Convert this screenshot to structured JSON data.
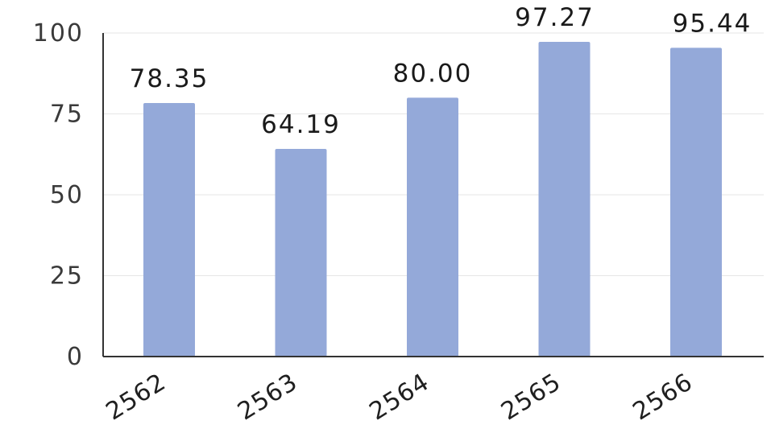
{
  "chart_data": {
    "type": "bar",
    "categories": [
      "2562",
      "2563",
      "2564",
      "2565",
      "2566"
    ],
    "values": [
      78.35,
      64.19,
      80.0,
      97.27,
      95.44
    ],
    "data_labels": [
      "78.35",
      "64.19",
      "80.00",
      "97.27",
      "95.44"
    ],
    "title": "",
    "xlabel": "",
    "ylabel": "",
    "ylim": [
      0,
      100
    ],
    "yticks": [
      0,
      25,
      50,
      75,
      100
    ],
    "ytick_labels": [
      "0",
      "25",
      "50",
      "75",
      "100"
    ],
    "grid": true,
    "legend": "none",
    "colors": {
      "bar": "#94a9d9",
      "grid": "#e6e6e6",
      "axis": "#333333"
    }
  }
}
